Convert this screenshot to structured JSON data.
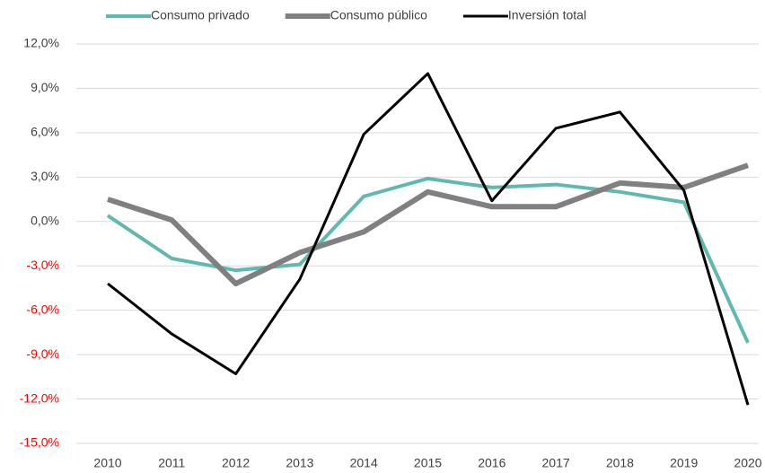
{
  "chart_data": {
    "type": "line",
    "categories": [
      "2010",
      "2011",
      "2012",
      "2013",
      "2014",
      "2015",
      "2016",
      "2017",
      "2018",
      "2019",
      "2020"
    ],
    "series": [
      {
        "name": "Consumo privado",
        "color": "#5fb9b0",
        "width": 4,
        "values": [
          0.4,
          -2.5,
          -3.3,
          -2.9,
          1.7,
          2.9,
          2.3,
          2.5,
          2.0,
          1.3,
          -8.2
        ]
      },
      {
        "name": "Consumo público",
        "color": "#808080",
        "width": 6,
        "values": [
          1.5,
          0.1,
          -4.2,
          -2.1,
          -0.7,
          2.0,
          1.0,
          1.0,
          2.6,
          2.3,
          3.8
        ]
      },
      {
        "name": "Inversión total",
        "color": "#000000",
        "width": 3,
        "values": [
          -4.2,
          -7.6,
          -10.3,
          -3.9,
          5.9,
          10.0,
          1.4,
          6.3,
          7.4,
          2.1,
          -12.4
        ]
      }
    ],
    "ylim": [
      -15,
      12
    ],
    "yticks": [
      {
        "value": -15,
        "label": "-15,0%"
      },
      {
        "value": -12,
        "label": "-12,0%"
      },
      {
        "value": -9,
        "label": "-9,0%"
      },
      {
        "value": -6,
        "label": "-6,0%"
      },
      {
        "value": -3,
        "label": "-3,0%"
      },
      {
        "value": 0,
        "label": "0,0%"
      },
      {
        "value": 3,
        "label": "3,0%"
      },
      {
        "value": 6,
        "label": "6,0%"
      },
      {
        "value": 9,
        "label": "9,0%"
      },
      {
        "value": 12,
        "label": "12,0%"
      }
    ],
    "grid": true,
    "legend": "top",
    "negative_label_color": "#ff0000"
  }
}
